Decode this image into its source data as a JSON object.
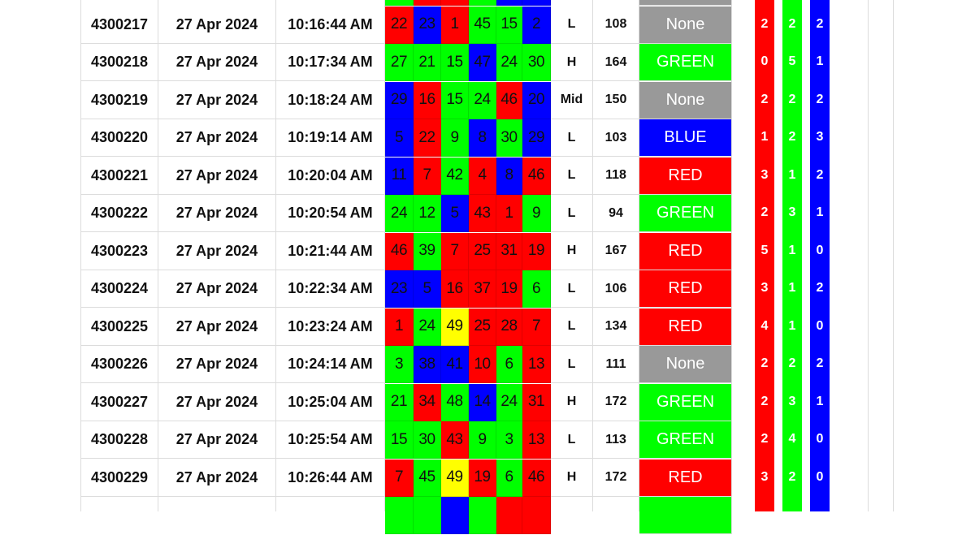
{
  "colors": {
    "R": "#ff0000",
    "G": "#00ff00",
    "B": "#0000ff",
    "Y": "#ffff00",
    "None": "#999999",
    "RED": "#ff0000",
    "GREEN": "#00ff00",
    "BLUE": "#0000ff"
  },
  "top_partial_row": {
    "ball_colors": [
      "G",
      "R",
      "R",
      "G",
      "B",
      "B"
    ],
    "result_color": "None"
  },
  "rows": [
    {
      "id": "4300217",
      "date": "27 Apr 2024",
      "time": "10:16:44 AM",
      "balls": [
        "22",
        "23",
        "1",
        "45",
        "15",
        "2"
      ],
      "ball_colors": [
        "R",
        "B",
        "R",
        "G",
        "G",
        "B"
      ],
      "level": "L",
      "total": "108",
      "result": "None",
      "red": "2",
      "green": "2",
      "blue": "2"
    },
    {
      "id": "4300218",
      "date": "27 Apr 2024",
      "time": "10:17:34 AM",
      "balls": [
        "27",
        "21",
        "15",
        "47",
        "24",
        "30"
      ],
      "ball_colors": [
        "G",
        "G",
        "G",
        "B",
        "G",
        "G"
      ],
      "level": "H",
      "total": "164",
      "result": "GREEN",
      "red": "0",
      "green": "5",
      "blue": "1"
    },
    {
      "id": "4300219",
      "date": "27 Apr 2024",
      "time": "10:18:24 AM",
      "balls": [
        "29",
        "16",
        "15",
        "24",
        "46",
        "20"
      ],
      "ball_colors": [
        "B",
        "R",
        "G",
        "G",
        "R",
        "B"
      ],
      "level": "Mid",
      "total": "150",
      "result": "None",
      "red": "2",
      "green": "2",
      "blue": "2"
    },
    {
      "id": "4300220",
      "date": "27 Apr 2024",
      "time": "10:19:14 AM",
      "balls": [
        "5",
        "22",
        "9",
        "8",
        "30",
        "29"
      ],
      "ball_colors": [
        "B",
        "R",
        "G",
        "B",
        "G",
        "B"
      ],
      "level": "L",
      "total": "103",
      "result": "BLUE",
      "red": "1",
      "green": "2",
      "blue": "3"
    },
    {
      "id": "4300221",
      "date": "27 Apr 2024",
      "time": "10:20:04 AM",
      "balls": [
        "11",
        "7",
        "42",
        "4",
        "8",
        "46"
      ],
      "ball_colors": [
        "B",
        "R",
        "G",
        "R",
        "B",
        "R"
      ],
      "level": "L",
      "total": "118",
      "result": "RED",
      "red": "3",
      "green": "1",
      "blue": "2"
    },
    {
      "id": "4300222",
      "date": "27 Apr 2024",
      "time": "10:20:54 AM",
      "balls": [
        "24",
        "12",
        "5",
        "43",
        "1",
        "9"
      ],
      "ball_colors": [
        "G",
        "G",
        "B",
        "R",
        "R",
        "G"
      ],
      "level": "L",
      "total": "94",
      "result": "GREEN",
      "red": "2",
      "green": "3",
      "blue": "1"
    },
    {
      "id": "4300223",
      "date": "27 Apr 2024",
      "time": "10:21:44 AM",
      "balls": [
        "46",
        "39",
        "7",
        "25",
        "31",
        "19"
      ],
      "ball_colors": [
        "R",
        "G",
        "R",
        "R",
        "R",
        "R"
      ],
      "level": "H",
      "total": "167",
      "result": "RED",
      "red": "5",
      "green": "1",
      "blue": "0"
    },
    {
      "id": "4300224",
      "date": "27 Apr 2024",
      "time": "10:22:34 AM",
      "balls": [
        "23",
        "5",
        "16",
        "37",
        "19",
        "6"
      ],
      "ball_colors": [
        "B",
        "B",
        "R",
        "R",
        "R",
        "G"
      ],
      "level": "L",
      "total": "106",
      "result": "RED",
      "red": "3",
      "green": "1",
      "blue": "2"
    },
    {
      "id": "4300225",
      "date": "27 Apr 2024",
      "time": "10:23:24 AM",
      "balls": [
        "1",
        "24",
        "49",
        "25",
        "28",
        "7"
      ],
      "ball_colors": [
        "R",
        "G",
        "Y",
        "R",
        "R",
        "R"
      ],
      "level": "L",
      "total": "134",
      "result": "RED",
      "red": "4",
      "green": "1",
      "blue": "0"
    },
    {
      "id": "4300226",
      "date": "27 Apr 2024",
      "time": "10:24:14 AM",
      "balls": [
        "3",
        "38",
        "41",
        "10",
        "6",
        "13"
      ],
      "ball_colors": [
        "G",
        "B",
        "B",
        "R",
        "G",
        "R"
      ],
      "level": "L",
      "total": "111",
      "result": "None",
      "red": "2",
      "green": "2",
      "blue": "2"
    },
    {
      "id": "4300227",
      "date": "27 Apr 2024",
      "time": "10:25:04 AM",
      "balls": [
        "21",
        "34",
        "48",
        "14",
        "24",
        "31"
      ],
      "ball_colors": [
        "G",
        "R",
        "G",
        "B",
        "G",
        "R"
      ],
      "level": "H",
      "total": "172",
      "result": "GREEN",
      "red": "2",
      "green": "3",
      "blue": "1"
    },
    {
      "id": "4300228",
      "date": "27 Apr 2024",
      "time": "10:25:54 AM",
      "balls": [
        "15",
        "30",
        "43",
        "9",
        "3",
        "13"
      ],
      "ball_colors": [
        "G",
        "G",
        "R",
        "G",
        "G",
        "R"
      ],
      "level": "L",
      "total": "113",
      "result": "GREEN",
      "red": "2",
      "green": "4",
      "blue": "0"
    },
    {
      "id": "4300229",
      "date": "27 Apr 2024",
      "time": "10:26:44 AM",
      "balls": [
        "7",
        "45",
        "49",
        "19",
        "6",
        "46"
      ],
      "ball_colors": [
        "R",
        "G",
        "Y",
        "R",
        "G",
        "R"
      ],
      "level": "H",
      "total": "172",
      "result": "RED",
      "red": "3",
      "green": "2",
      "blue": "0"
    }
  ],
  "bottom_partial_row": {
    "ball_colors": [
      "G",
      "G",
      "B",
      "G",
      "R",
      "R"
    ],
    "result_color": "GREEN"
  }
}
